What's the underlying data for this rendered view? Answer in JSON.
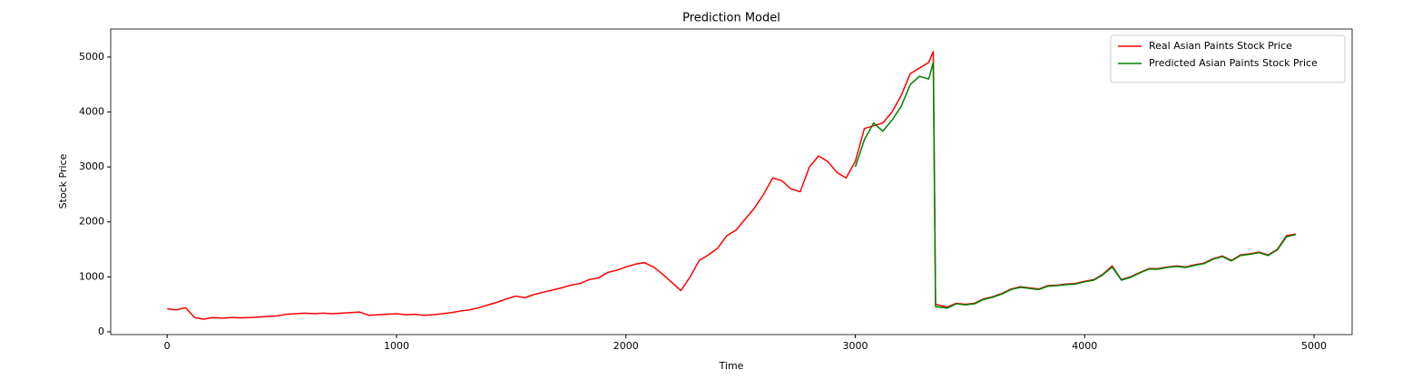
{
  "chart_data": {
    "type": "line",
    "title": "Prediction Model",
    "x_label": "Time",
    "y_label": "Stock Price",
    "x": [
      0,
      40,
      80,
      120,
      160,
      200,
      240,
      280,
      320,
      360,
      400,
      440,
      480,
      520,
      560,
      600,
      640,
      680,
      720,
      760,
      800,
      840,
      880,
      920,
      960,
      1000,
      1040,
      1080,
      1120,
      1160,
      1200,
      1240,
      1280,
      1320,
      1360,
      1400,
      1440,
      1480,
      1520,
      1560,
      1600,
      1640,
      1680,
      1720,
      1760,
      1800,
      1840,
      1880,
      1920,
      1960,
      2000,
      2040,
      2080,
      2120,
      2160,
      2200,
      2240,
      2280,
      2320,
      2360,
      2400,
      2440,
      2480,
      2520,
      2560,
      2600,
      2640,
      2680,
      2720,
      2760,
      2800,
      2840,
      2880,
      2920,
      2960,
      3000,
      3040,
      3080,
      3120,
      3160,
      3200,
      3240,
      3280,
      3320,
      3340,
      3350,
      3400,
      3440,
      3480,
      3520,
      3560,
      3600,
      3640,
      3680,
      3720,
      3760,
      3800,
      3840,
      3880,
      3920,
      3960,
      4000,
      4040,
      4080,
      4120,
      4160,
      4200,
      4240,
      4280,
      4320,
      4360,
      4400,
      4440,
      4480,
      4520,
      4560,
      4600,
      4640,
      4680,
      4720,
      4760,
      4800,
      4840,
      4880,
      4920
    ],
    "series": [
      {
        "name": "Real Asian Paints Stock Price",
        "color": "#ff0000",
        "values": [
          420,
          400,
          440,
          260,
          230,
          260,
          250,
          260,
          255,
          260,
          270,
          280,
          290,
          320,
          330,
          340,
          330,
          340,
          330,
          340,
          350,
          360,
          300,
          310,
          320,
          330,
          310,
          320,
          300,
          310,
          330,
          350,
          380,
          400,
          440,
          490,
          540,
          600,
          650,
          620,
          680,
          720,
          760,
          800,
          850,
          880,
          950,
          980,
          1080,
          1120,
          1180,
          1230,
          1260,
          1180,
          1050,
          900,
          750,
          1000,
          1300,
          1400,
          1520,
          1750,
          1850,
          2050,
          2250,
          2500,
          2800,
          2750,
          2600,
          2550,
          3000,
          3200,
          3100,
          2900,
          2800,
          3100,
          3700,
          3750,
          3800,
          4000,
          4300,
          4700,
          4800,
          4900,
          5100,
          500,
          450,
          520,
          500,
          520,
          600,
          640,
          700,
          780,
          820,
          800,
          780,
          840,
          850,
          870,
          880,
          920,
          950,
          1050,
          1200,
          950,
          1000,
          1080,
          1150,
          1150,
          1180,
          1200,
          1180,
          1220,
          1250,
          1330,
          1380,
          1300,
          1400,
          1420,
          1450,
          1400,
          1500,
          1750,
          1780
        ]
      },
      {
        "name": "Predicted Asian Paints Stock Price",
        "color": "#008000",
        "values": [
          null,
          null,
          null,
          null,
          null,
          null,
          null,
          null,
          null,
          null,
          null,
          null,
          null,
          null,
          null,
          null,
          null,
          null,
          null,
          null,
          null,
          null,
          null,
          null,
          null,
          null,
          null,
          null,
          null,
          null,
          null,
          null,
          null,
          null,
          null,
          null,
          null,
          null,
          null,
          null,
          null,
          null,
          null,
          null,
          null,
          null,
          null,
          null,
          null,
          null,
          null,
          null,
          null,
          null,
          null,
          null,
          null,
          null,
          null,
          null,
          null,
          null,
          null,
          null,
          null,
          null,
          null,
          null,
          null,
          null,
          null,
          null,
          null,
          null,
          null,
          3000,
          3500,
          3800,
          3650,
          3850,
          4100,
          4500,
          4650,
          4600,
          4900,
          460,
          430,
          510,
          490,
          510,
          590,
          630,
          690,
          770,
          810,
          790,
          770,
          830,
          840,
          860,
          870,
          910,
          940,
          1040,
          1180,
          940,
          990,
          1070,
          1140,
          1140,
          1170,
          1190,
          1170,
          1210,
          1240,
          1320,
          1370,
          1290,
          1390,
          1410,
          1440,
          1390,
          1490,
          1730,
          1770
        ]
      }
    ],
    "xlim": [
      -246,
      5166
    ],
    "ylim": [
      -50,
      5510
    ],
    "xticks": [
      0,
      1000,
      2000,
      3000,
      4000,
      5000
    ],
    "yticks": [
      0,
      1000,
      2000,
      3000,
      4000,
      5000
    ],
    "legend": "upper right"
  }
}
